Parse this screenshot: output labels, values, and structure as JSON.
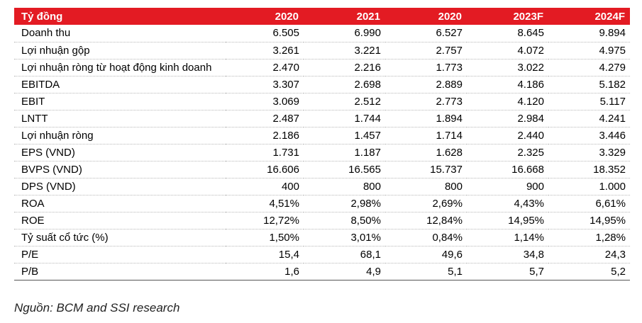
{
  "table": {
    "header": [
      "Tỷ đồng",
      "2020",
      "2021",
      "2020",
      "2023F",
      "2024F"
    ],
    "rows": [
      [
        "Doanh thu",
        "6.505",
        "6.990",
        "6.527",
        "8.645",
        "9.894"
      ],
      [
        "Lợi nhuận gộp",
        "3.261",
        "3.221",
        "2.757",
        "4.072",
        "4.975"
      ],
      [
        "Lợi nhuận ròng từ hoạt động kinh doanh",
        "2.470",
        "2.216",
        "1.773",
        "3.022",
        "4.279"
      ],
      [
        "EBITDA",
        "3.307",
        "2.698",
        "2.889",
        "4.186",
        "5.182"
      ],
      [
        "EBIT",
        "3.069",
        "2.512",
        "2.773",
        "4.120",
        "5.117"
      ],
      [
        "LNTT",
        "2.487",
        "1.744",
        "1.894",
        "2.984",
        "4.241"
      ],
      [
        "Lợi nhuận ròng",
        "2.186",
        "1.457",
        "1.714",
        "2.440",
        "3.446"
      ],
      [
        "EPS (VND)",
        "1.731",
        "1.187",
        "1.628",
        "2.325",
        "3.329"
      ],
      [
        "BVPS (VND)",
        "16.606",
        "16.565",
        "15.737",
        "16.668",
        "18.352"
      ],
      [
        "DPS (VND)",
        "400",
        "800",
        "800",
        "900",
        "1.000"
      ],
      [
        "ROA",
        "4,51%",
        "2,98%",
        "2,69%",
        "4,43%",
        "6,61%"
      ],
      [
        "ROE",
        "12,72%",
        "8,50%",
        "12,84%",
        "14,95%",
        "14,95%"
      ],
      [
        "Tỷ suất cổ tức (%)",
        "1,50%",
        "3,01%",
        "0,84%",
        "1,14%",
        "1,28%"
      ],
      [
        "P/E",
        "15,4",
        "68,1",
        "49,6",
        "34,8",
        "24,3"
      ],
      [
        "P/B",
        "1,6",
        "4,9",
        "5,1",
        "5,7",
        "5,2"
      ]
    ]
  },
  "source": "Nguồn: BCM and SSI research",
  "colors": {
    "header_bg": "#e31b23",
    "header_text": "#ffffff"
  }
}
